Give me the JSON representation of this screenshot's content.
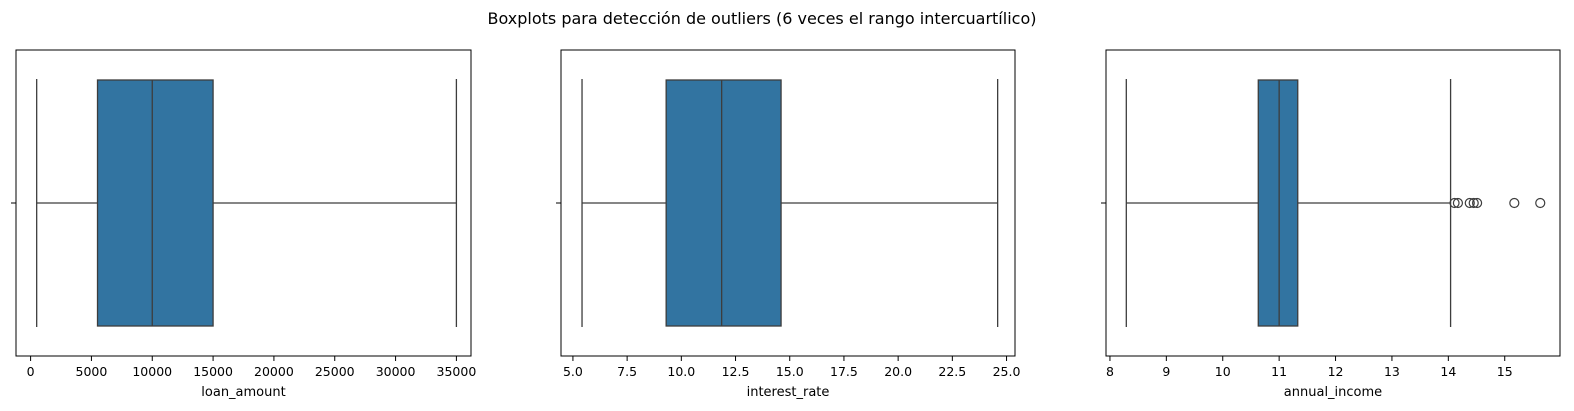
{
  "title": "Boxplots para detección de outliers (6 veces el rango intercuartílico)",
  "colors": {
    "box_fill": "#3274a1",
    "line": "#3d3d3d",
    "frame": "#000000"
  },
  "chart_data": [
    {
      "type": "boxplot",
      "xlabel": "loan_amount",
      "xlim": [
        -1200,
        36200
      ],
      "ticks": [
        0,
        5000,
        10000,
        15000,
        20000,
        25000,
        30000,
        35000
      ],
      "tick_labels": [
        "0",
        "5000",
        "10000",
        "15000",
        "20000",
        "25000",
        "30000",
        "35000"
      ],
      "whisker_low": 500,
      "q1": 5500,
      "median": 10000,
      "q3": 15000,
      "whisker_high": 35000,
      "outliers": []
    },
    {
      "type": "boxplot",
      "xlabel": "interest_rate",
      "xlim": [
        4.45,
        25.39
      ],
      "ticks": [
        5.0,
        7.5,
        10.0,
        12.5,
        15.0,
        17.5,
        20.0,
        22.5,
        25.0
      ],
      "tick_labels": [
        "5.0",
        "7.5",
        "10.0",
        "12.5",
        "15.0",
        "17.5",
        "20.0",
        "22.5",
        "25.0"
      ],
      "whisker_low": 5.42,
      "q1": 9.3,
      "median": 11.86,
      "q3": 14.6,
      "whisker_high": 24.59,
      "outliers": []
    },
    {
      "type": "boxplot",
      "xlabel": "annual_income",
      "xlim": [
        7.93,
        15.98
      ],
      "ticks": [
        8,
        9,
        10,
        11,
        12,
        13,
        14,
        15
      ],
      "tick_labels": [
        "8",
        "9",
        "10",
        "11",
        "12",
        "13",
        "14",
        "15"
      ],
      "whisker_low": 8.29,
      "q1": 10.63,
      "median": 11.0,
      "q3": 11.33,
      "whisker_high": 14.04,
      "outliers": [
        14.11,
        14.17,
        14.38,
        14.45,
        14.51,
        15.17,
        15.63
      ]
    }
  ]
}
